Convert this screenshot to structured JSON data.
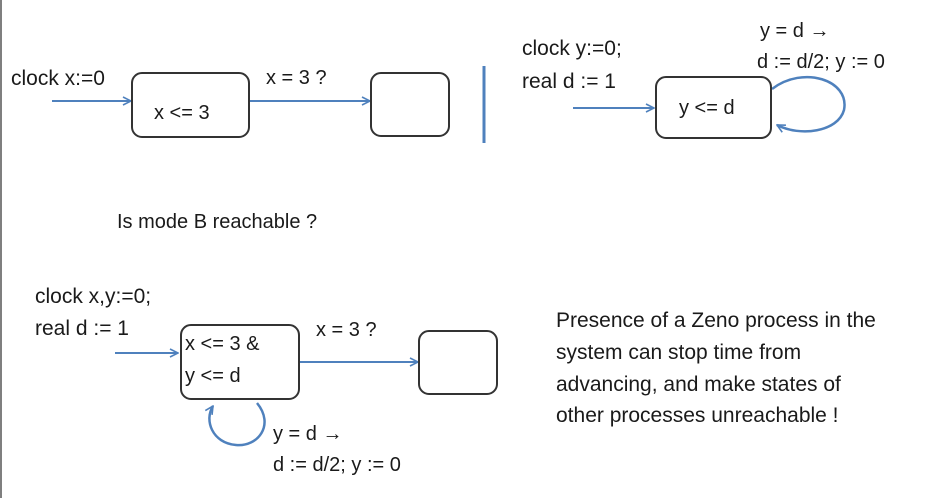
{
  "top_left": {
    "decl": "clock x:=0",
    "modeA": "x <= 3",
    "edge": "x = 3 ?"
  },
  "top_right": {
    "decl1": "clock y:=0;",
    "decl2": "real d := 1",
    "mode": "y <= d",
    "loop1": "y = d →",
    "loop2": "d := d/2; y := 0"
  },
  "question": "Is mode B reachable ?",
  "bottom": {
    "decl1": "clock x,y:=0;",
    "decl2": "real d := 1",
    "mode1": "x <= 3 &",
    "mode2": "y <= d",
    "edge": "x = 3 ?",
    "loop1": "y = d →",
    "loop2": "d := d/2; y := 0"
  },
  "note": [
    "Presence of a Zeno process in the",
    "system can stop time from",
    "advancing, and make states of",
    "other processes unreachable !"
  ],
  "colors": {
    "arrow": "#4f81bd",
    "box_border": "#333333",
    "text": "#1a1a1a"
  }
}
